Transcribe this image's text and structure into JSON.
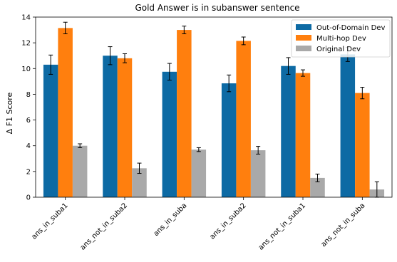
{
  "chart_data": {
    "type": "bar",
    "title": "Gold Answer is in subanswer sentence",
    "xlabel": "",
    "ylabel": "Δ F1 Score",
    "ylim": [
      0,
      14
    ],
    "yticks": [
      "0",
      "2",
      "4",
      "6",
      "8",
      "10",
      "12",
      "14"
    ],
    "categories": [
      "ans_in_suba1",
      "ans_not_in_suba2",
      "ans_in_suba",
      "ans_in_suba2",
      "ans_not_in_suba1",
      "ans_not_in_suba"
    ],
    "series": [
      {
        "name": "Out-of-Domain Dev",
        "color": "#0d6aa4",
        "values": [
          10.3,
          11.0,
          9.75,
          8.85,
          10.2,
          11.1
        ],
        "errors": [
          0.75,
          0.7,
          0.65,
          0.65,
          0.65,
          0.55
        ]
      },
      {
        "name": "Multi-hop Dev",
        "color": "#ff7f0e",
        "values": [
          13.15,
          10.8,
          13.0,
          12.15,
          9.65,
          8.1
        ],
        "errors": [
          0.45,
          0.35,
          0.3,
          0.3,
          0.25,
          0.45
        ]
      },
      {
        "name": "Original Dev",
        "color": "#a9a9a9",
        "values": [
          4.0,
          2.25,
          3.7,
          3.65,
          1.5,
          0.6
        ],
        "errors": [
          0.15,
          0.4,
          0.15,
          0.3,
          0.3,
          0.6
        ]
      }
    ],
    "legend_position": "top-right",
    "grid": false
  }
}
